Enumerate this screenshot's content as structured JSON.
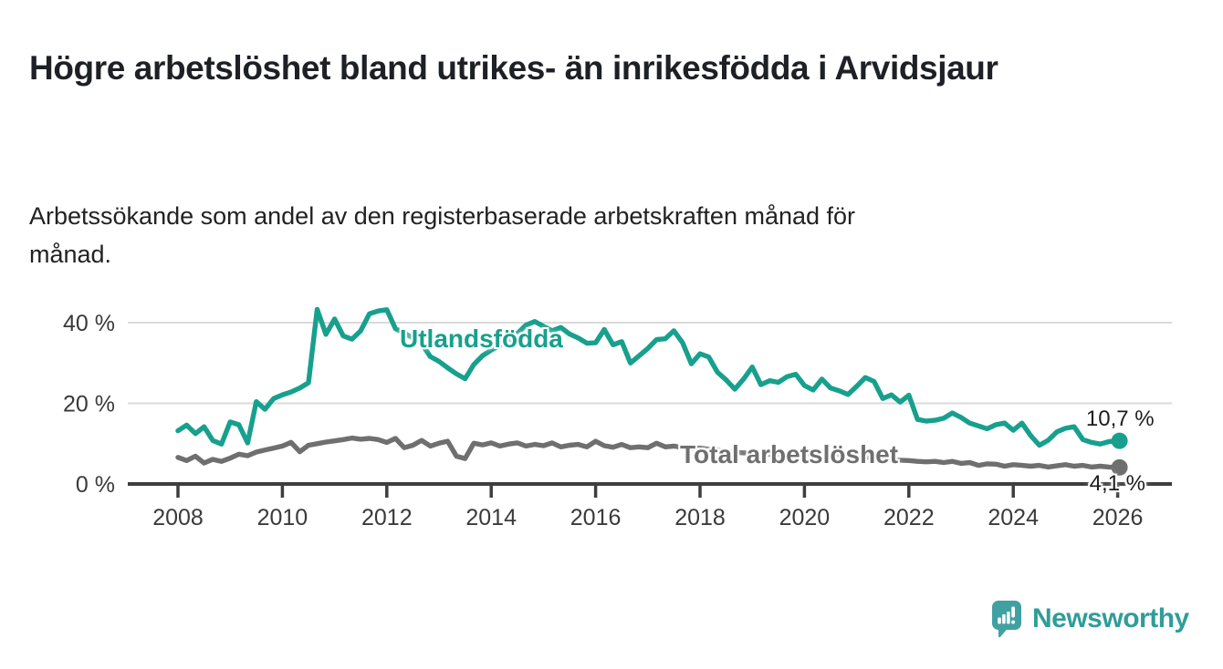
{
  "title": "Högre arbetslöshet bland utrikes- än inrikesfödda i Arvidsjaur",
  "subtitle": "Arbetssökande som andel av den registerbaserade arbetskraften månad för månad.",
  "branding": {
    "logo_text": "Newsworthy",
    "logo_icon": "bar-chart-speech-bubble-icon",
    "logo_color": "#2f9d98",
    "logo_icon_color": "#41a1a2"
  },
  "chart_data": {
    "type": "line",
    "title": "Högre arbetslöshet bland utrikes- än inrikesfödda i Arvidsjaur",
    "subtitle": "Arbetssökande som andel av den registerbaserade arbetskraften månad för månad.",
    "unit": "%",
    "grid": "horizontal",
    "legend_position": "inline-on-lines",
    "x_axis": {
      "start": 2008,
      "step_years": 0.16666667,
      "end": 2026,
      "ticks": [
        2008,
        2010,
        2012,
        2014,
        2016,
        2018,
        2020,
        2022,
        2024,
        2026
      ]
    },
    "y_axis": {
      "min": 0,
      "max": 45,
      "ticks": [
        {
          "value": 0,
          "label": "0 %"
        },
        {
          "value": 20,
          "label": "20 %"
        },
        {
          "value": 40,
          "label": "40 %"
        }
      ]
    },
    "style": {
      "grid_color": "#dadada",
      "axis_color": "#3e3e3e"
    },
    "series": [
      {
        "name": "Utlandsfödda",
        "color": "#17a08d",
        "end_label": "10,7 %",
        "end_value": 10.7,
        "values": [
          13.2,
          14.6,
          12.5,
          14.2,
          10.8,
          9.9,
          15.4,
          14.7,
          10.2,
          20.4,
          18.5,
          21.2,
          22.1,
          22.8,
          23.8,
          25.1,
          43.3,
          37.1,
          40.9,
          36.7,
          35.9,
          38.0,
          42.2,
          42.9,
          43.2,
          38.5,
          37.4,
          36.2,
          34.8,
          31.6,
          30.4,
          28.8,
          27.3,
          26.1,
          29.6,
          31.8,
          33.2,
          34.4,
          35.6,
          37.3,
          39.4,
          40.3,
          39.1,
          38.0,
          38.8,
          37.2,
          36.2,
          34.9,
          35.0,
          38.3,
          34.5,
          35.3,
          30.0,
          31.8,
          33.6,
          35.8,
          36.0,
          38.0,
          35.0,
          29.8,
          32.3,
          31.5,
          27.7,
          25.8,
          23.5,
          26.0,
          29.0,
          24.6,
          25.6,
          25.2,
          26.6,
          27.2,
          24.4,
          23.3,
          26.0,
          23.8,
          23.1,
          22.2,
          24.2,
          26.4,
          25.4,
          21.2,
          22.1,
          20.3,
          22.0,
          16.0,
          15.6,
          15.8,
          16.3,
          17.6,
          16.5,
          15.1,
          14.4,
          13.7,
          14.7,
          15.1,
          13.3,
          15.1,
          12.0,
          9.6,
          10.8,
          12.9,
          13.8,
          14.2,
          11.0,
          10.3,
          9.9,
          10.5,
          10.7
        ]
      },
      {
        "name": "Total arbetslöshet",
        "color": "#6f6f6f",
        "end_label": "4,1 %",
        "end_value": 4.1,
        "values": [
          6.6,
          5.8,
          6.9,
          5.2,
          6.1,
          5.6,
          6.4,
          7.4,
          7.0,
          7.9,
          8.4,
          8.9,
          9.4,
          10.3,
          8.0,
          9.6,
          10.0,
          10.4,
          10.7,
          11.0,
          11.4,
          11.1,
          11.3,
          11.0,
          10.3,
          11.3,
          9.0,
          9.6,
          10.8,
          9.4,
          10.1,
          10.6,
          6.9,
          6.3,
          10.1,
          9.7,
          10.2,
          9.4,
          9.9,
          10.2,
          9.4,
          9.8,
          9.5,
          10.2,
          9.2,
          9.6,
          9.8,
          9.2,
          10.6,
          9.5,
          9.1,
          9.8,
          9.0,
          9.2,
          9.0,
          10.1,
          9.2,
          9.4,
          9.0,
          8.8,
          8.9,
          8.6,
          8.4,
          8.1,
          7.9,
          7.7,
          7.8,
          7.5,
          7.3,
          7.4,
          7.2,
          7.0,
          7.2,
          7.8,
          8.0,
          7.7,
          7.4,
          7.1,
          6.9,
          6.7,
          6.4,
          6.2,
          6.0,
          5.9,
          5.8,
          5.6,
          5.5,
          5.6,
          5.3,
          5.6,
          5.1,
          5.3,
          4.6,
          5.0,
          4.9,
          4.4,
          4.8,
          4.6,
          4.4,
          4.6,
          4.2,
          4.5,
          4.8,
          4.4,
          4.6,
          4.2,
          4.4,
          4.2,
          4.1
        ]
      }
    ]
  }
}
